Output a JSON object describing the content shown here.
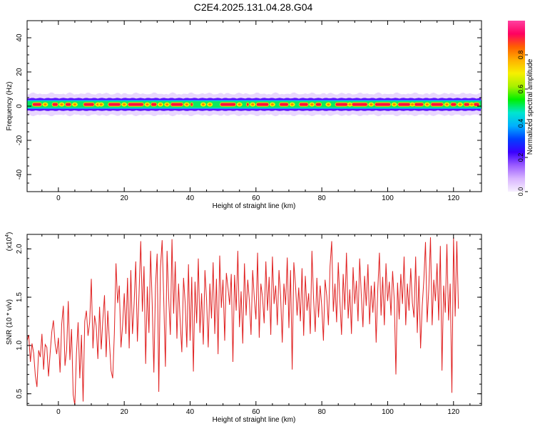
{
  "title": "C2E4.2025.131.04.28.G04",
  "chart_data": [
    {
      "type": "heatmap",
      "xlabel": "Height of straight line (km)",
      "ylabel": "Frequency (Hz)",
      "xlim": [
        -9.5,
        128.5
      ],
      "ylim": [
        -50,
        50
      ],
      "xticks": [
        0,
        20,
        40,
        60,
        80,
        100,
        120
      ],
      "yticks": [
        -40,
        -20,
        0,
        20,
        40
      ],
      "colorbar": {
        "label": "Normalized spectral amplitude",
        "range": [
          0.0,
          1.0
        ],
        "ticks": [
          "0.0",
          "0.2",
          "0.4",
          "0.6",
          "0.8"
        ],
        "ramp": [
          "#f7f0ff",
          "#d8b4ff",
          "#9b5cff",
          "#3b00ff",
          "#0040ff",
          "#00b0ff",
          "#00e5d0",
          "#00f000",
          "#a8f000",
          "#f7f000",
          "#ffb000",
          "#ff6000",
          "#ff0060",
          "#ff40a0"
        ]
      },
      "band": {
        "center_hz": 1,
        "halfwidth_hz": [
          2.5,
          4.5
        ],
        "core_segments_km": [
          [
            -8,
            -5
          ],
          [
            -2,
            0
          ],
          [
            2,
            4
          ],
          [
            7.5,
            11
          ],
          [
            15,
            19
          ],
          [
            21,
            26
          ],
          [
            28,
            30
          ],
          [
            34,
            38
          ],
          [
            40,
            41
          ],
          [
            49,
            54
          ],
          [
            57,
            58
          ],
          [
            60,
            64
          ],
          [
            67,
            70
          ],
          [
            73,
            76
          ],
          [
            78,
            80
          ],
          [
            84,
            88
          ],
          [
            89,
            94
          ],
          [
            96,
            101
          ],
          [
            103,
            107
          ],
          [
            108,
            111
          ],
          [
            113,
            117
          ],
          [
            119,
            121
          ],
          [
            123,
            125
          ],
          [
            126,
            128
          ]
        ],
        "yellow_dots_km": [
          -4,
          1,
          5,
          12,
          13,
          20,
          27,
          31,
          33,
          39,
          44,
          46,
          55,
          59,
          65,
          71,
          77,
          82,
          88.5,
          95,
          102,
          107.5,
          112,
          118,
          122,
          125.5
        ]
      }
    },
    {
      "type": "line",
      "xlabel": "Height of straight line (km)",
      "ylabel": "SNR (10 * v/v)",
      "multiplier_label": "(x10",
      "multiplier_exp": "4",
      "multiplier_close": ")",
      "xlim": [
        -9.5,
        128.5
      ],
      "ylim": [
        0.38,
        2.15
      ],
      "xticks": [
        0,
        20,
        40,
        60,
        80,
        100,
        120
      ],
      "yticks": [
        0.5,
        1.0,
        1.5,
        2.0
      ],
      "ytick_labels": [
        "0.5",
        "1.0",
        "1.5",
        "2.0"
      ],
      "series": [
        {
          "color": "#e02020",
          "x_start": -9.5,
          "x_step": 0.5,
          "values": [
            1.05,
            1.11,
            0.83,
            1.02,
            0.92,
            0.69,
            0.57,
            0.95,
            0.88,
            1.12,
            0.75,
            1.01,
            0.98,
            0.68,
            0.92,
            1.14,
            1.26,
            1.02,
            0.91,
            1.08,
            0.72,
            1.22,
            1.41,
            0.79,
            0.95,
            1.46,
            0.85,
            1.17,
            0.49,
            0.38,
            0.92,
            1.24,
            0.66,
            1.11,
            0.42,
            1.25,
            1.36,
            1.1,
            1.24,
            1.69,
            0.97,
            1.31,
            1.2,
            0.86,
            1.4,
            0.96,
            1.27,
            1.52,
            0.88,
            1.36,
            1.04,
            0.74,
            0.66,
            1.12,
            1.85,
            1.44,
            1.62,
            0.98,
            1.21,
            1.54,
            1.12,
            1.7,
            0.97,
            1.78,
            1.12,
            1.43,
            1.87,
            1.04,
            1.53,
            2.08,
            1.35,
            1.82,
            0.81,
            1.61,
            1.13,
            1.98,
            1.42,
            0.72,
            1.62,
            1.95,
            0.52,
            1.8,
            2.09,
            1.46,
            0.78,
            1.98,
            1.49,
            1.11,
            2.1,
            1.33,
            1.87,
            1.07,
            1.64,
            1.25,
            0.93,
            1.7,
            1.44,
            0.98,
            1.84,
            1.05,
            1.71,
            0.73,
            1.66,
            1.23,
            1.9,
            1.13,
            1.54,
            1.01,
            1.78,
            1.47,
            0.98,
            1.64,
            1.28,
            1.86,
            1.12,
            1.69,
            0.91,
            1.93,
            1.39,
            1.68,
            1.05,
            1.75,
            1.6,
            1.42,
            1.74,
            0.83,
            1.73,
            1.36,
            1.98,
            1.19,
            1.56,
            1.02,
            1.85,
            1.31,
            1.68,
            1.46,
            1.11,
            1.78,
            1.49,
            1.27,
            1.96,
            1.08,
            1.64,
            1.5,
            1.23,
            1.87,
            1.36,
            1.71,
            1.11,
            1.92,
            1.43,
            1.62,
            1.21,
            1.78,
            1.51,
            1.03,
            1.64,
            1.42,
            1.91,
            1.18,
            1.78,
            0.75,
            1.86,
            1.63,
            1.31,
            1.6,
            1.25,
            1.8,
            1.1,
            1.72,
            1.36,
            1.54,
            1.12,
            1.98,
            1.48,
            1.14,
            1.7,
            1.29,
            1.62,
            1.4,
            1.05,
            1.68,
            1.51,
            1.21,
            1.82,
            2.08,
            1.35,
            1.64,
            1.24,
            1.86,
            1.46,
            1.11,
            1.74,
            1.37,
            1.96,
            1.28,
            1.58,
            1.12,
            1.81,
            1.43,
            1.67,
            1.25,
            1.9,
            1.52,
            1.19,
            1.72,
            1.41,
            1.84,
            1.22,
            1.62,
            1.34,
            1.66,
            1.03,
            1.58,
            1.96,
            1.31,
            1.71,
            1.21,
            1.85,
            1.46,
            1.66,
            1.31,
            1.77,
            1.47,
            0.7,
            1.65,
            1.27,
            1.74,
            1.43,
            1.92,
            1.21,
            1.64,
            1.36,
            1.8,
            1.44,
            1.29,
            1.92,
            1.13,
            1.72,
            0.97,
            1.41,
            1.68,
            2.07,
            1.24,
            1.58,
            2.12,
            1.21,
            1.68,
            1.46,
            1.85,
            1.26,
            2.03,
            0.74,
            1.62,
            1.34,
            2.05,
            1.26,
            1.64,
            0.51,
            2.12,
            1.3,
            2.08,
            1.38
          ]
        }
      ]
    }
  ]
}
